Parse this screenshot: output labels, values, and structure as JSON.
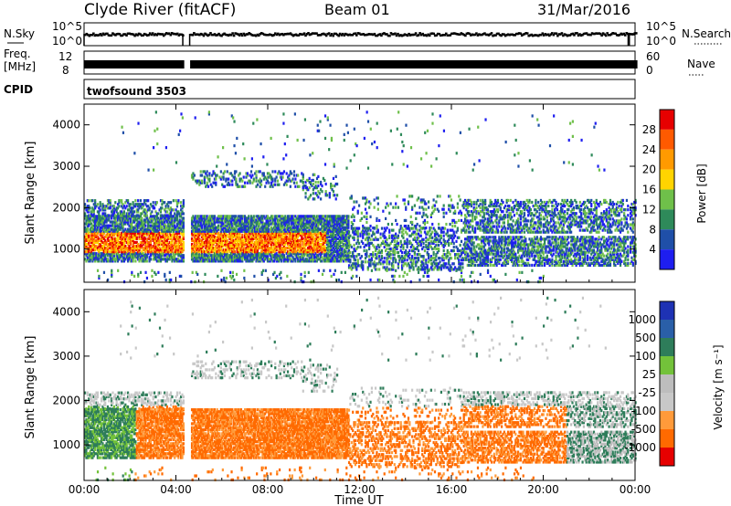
{
  "header": {
    "station": "Clyde River (fitACF)",
    "beam": "Beam 01",
    "date": "31/Mar/2016"
  },
  "strip_labels": {
    "nsky": "N.Sky",
    "nsearch": "N.Search",
    "freq_line1": "Freq.",
    "freq_line2": "[MHz]",
    "nave": "Nave",
    "cpid": "CPID",
    "cpid_value": "twofsound 3503",
    "nsky_ticks": [
      "10^5",
      "10^0"
    ],
    "nsearch_ticks": [
      "10^5",
      "10^0"
    ],
    "freq_ticks": [
      "12",
      "8"
    ],
    "nave_ticks": [
      "60",
      "0"
    ]
  },
  "colors": {
    "power_scale": [
      "#1e1ef0",
      "#1f4fa8",
      "#2e8a5a",
      "#6fc04a",
      "#ffd400",
      "#ff9a00",
      "#ff5a00",
      "#e60000"
    ],
    "velocity_scale": [
      "#e60000",
      "#ff6a00",
      "#ff9a3a",
      "#c8c8c8",
      "#bdbdbd",
      "#73c23a",
      "#2e7d5a",
      "#2a5fa8",
      "#1e32b4"
    ]
  },
  "chart_data": [
    {
      "type": "heatmap",
      "panel": "power",
      "xlabel": "",
      "ylabel": "Slant Range [km]",
      "xlim": [
        0,
        24
      ],
      "ylim": [
        200,
        4500
      ],
      "x_ticks": [
        "00:00",
        "04:00",
        "08:00",
        "12:00",
        "16:00",
        "20:00",
        "00:00"
      ],
      "y_ticks": [
        "1000",
        "2000",
        "3000",
        "4000"
      ],
      "colorbar": {
        "label": "Power [dB]",
        "ticks": [
          "28",
          "24",
          "20",
          "16",
          "12",
          "8",
          "4"
        ],
        "range": [
          0,
          30
        ]
      },
      "data_gaps": [
        [
          4.3,
          4.6
        ],
        [
          23.7,
          23.75
        ]
      ]
    },
    {
      "type": "heatmap",
      "panel": "velocity",
      "xlabel": "Time UT",
      "ylabel": "Slant Range [km]",
      "xlim": [
        0,
        24
      ],
      "ylim": [
        200,
        4500
      ],
      "x_ticks": [
        "00:00",
        "04:00",
        "08:00",
        "12:00",
        "16:00",
        "20:00",
        "00:00"
      ],
      "y_ticks": [
        "1000",
        "2000",
        "3000",
        "4000"
      ],
      "colorbar": {
        "label": "Velocity [m s⁻¹]",
        "ticks": [
          "1000",
          "500",
          "100",
          "25",
          "-25",
          "-100",
          "-500",
          "-1000"
        ]
      },
      "data_gaps": [
        [
          4.3,
          4.6
        ],
        [
          23.7,
          23.75
        ]
      ]
    }
  ]
}
